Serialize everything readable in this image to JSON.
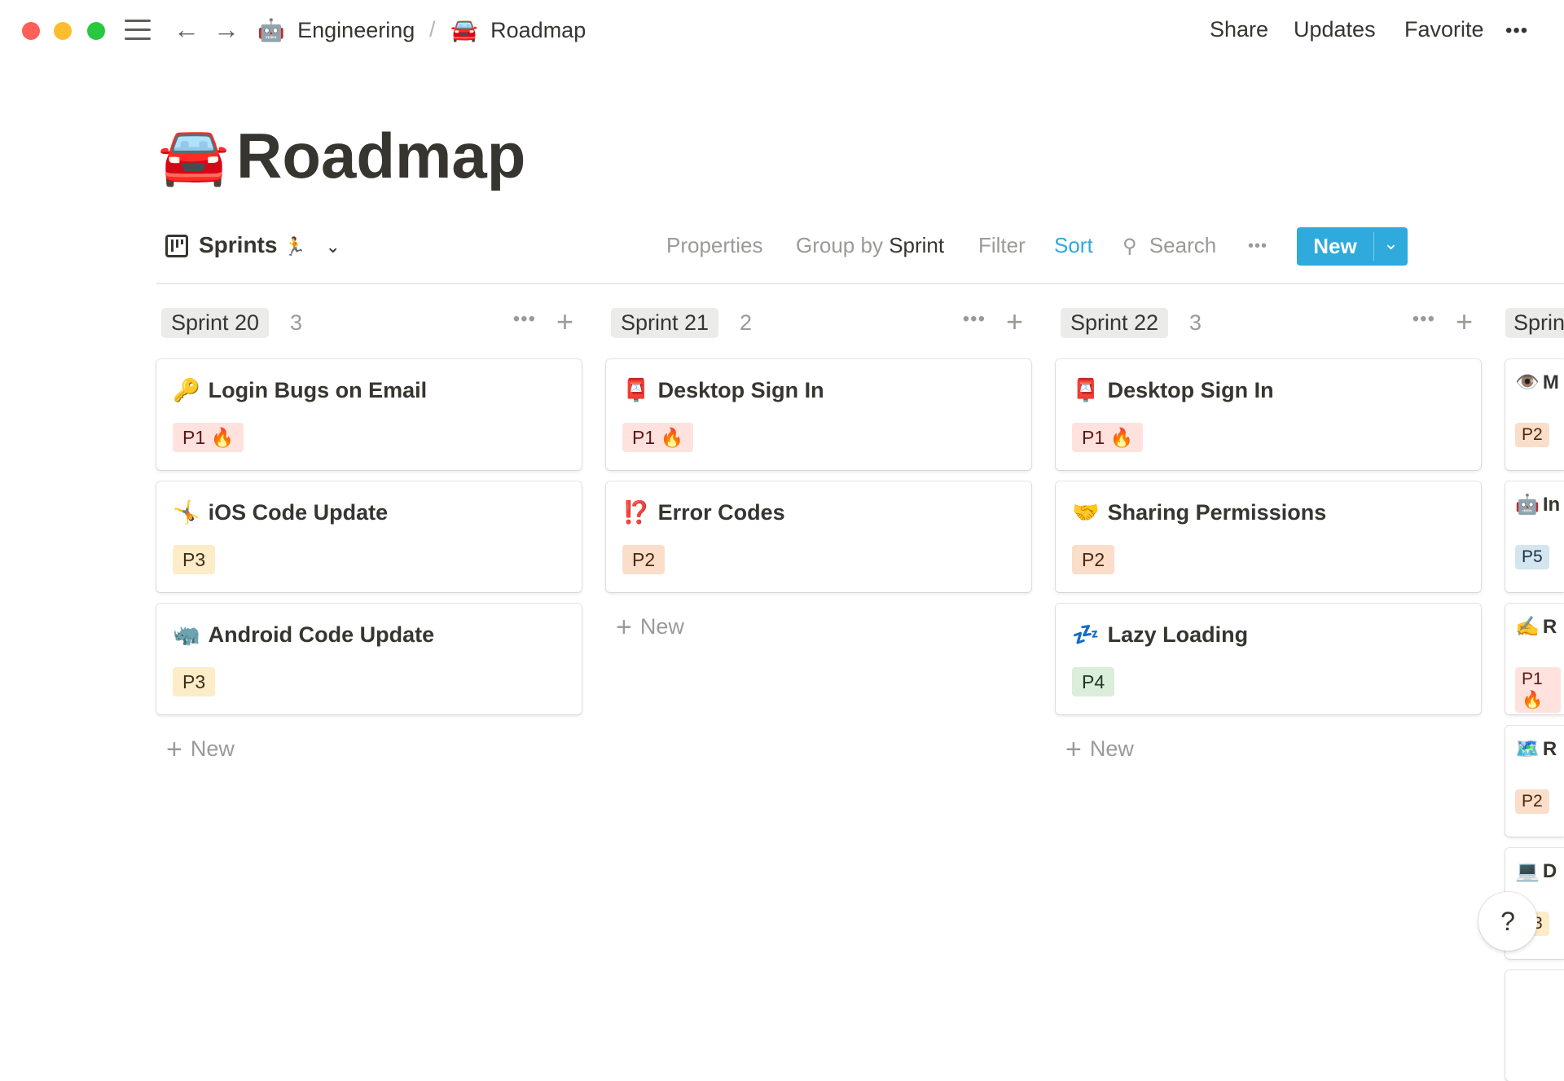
{
  "window": {
    "traffic_lights": [
      "#ff5f57",
      "#febc2e",
      "#28c840"
    ]
  },
  "topbar": {
    "breadcrumb": [
      {
        "icon": "🤖",
        "label": "Engineering"
      },
      {
        "icon": "🚘",
        "label": "Roadmap"
      }
    ],
    "separator": "/",
    "share": "Share",
    "updates": "Updates",
    "favorite": "Favorite",
    "more": "•••"
  },
  "page": {
    "icon": "🚘",
    "title": "Roadmap"
  },
  "toolbar": {
    "view_name": "Sprints",
    "view_emoji": "🏃",
    "properties": "Properties",
    "group_by_prefix": "Group by",
    "group_by_value": "Sprint",
    "filter": "Filter",
    "sort": "Sort",
    "search": "Search",
    "more": "•••",
    "new": "New",
    "accent": "#2eaadc"
  },
  "priority_colors": {
    "P1": {
      "bg": "#ffe2dd",
      "fg": "#5d1715"
    },
    "P2": {
      "bg": "#fadec9",
      "fg": "#49290e"
    },
    "P3": {
      "bg": "#fdecc8",
      "fg": "#402c1b"
    },
    "P4": {
      "bg": "#dbeddb",
      "fg": "#1c3829"
    },
    "P5": {
      "bg": "#d3e5ef",
      "fg": "#183347"
    }
  },
  "columns": [
    {
      "name": "Sprint 20",
      "count": "3",
      "new_label": "New",
      "cards": [
        {
          "icon": "🔑",
          "title": "Login Bugs on Email",
          "priority": "P1",
          "tag": "P1 🔥"
        },
        {
          "icon": "🤸",
          "title": "iOS Code Update",
          "priority": "P3",
          "tag": "P3"
        },
        {
          "icon": "🦏",
          "title": "Android Code Update",
          "priority": "P3",
          "tag": "P3"
        }
      ]
    },
    {
      "name": "Sprint 21",
      "count": "2",
      "new_label": "New",
      "cards": [
        {
          "icon": "📮",
          "title": "Desktop Sign In",
          "priority": "P1",
          "tag": "P1 🔥"
        },
        {
          "icon": "⁉️",
          "title": "Error Codes",
          "priority": "P2",
          "tag": "P2"
        }
      ]
    },
    {
      "name": "Sprint 22",
      "count": "3",
      "new_label": "New",
      "cards": [
        {
          "icon": "📮",
          "title": "Desktop Sign In",
          "priority": "P1",
          "tag": "P1 🔥"
        },
        {
          "icon": "🤝",
          "title": "Sharing Permissions",
          "priority": "P2",
          "tag": "P2"
        },
        {
          "icon": "💤",
          "title": "Lazy Loading",
          "priority": "P4",
          "tag": "P4"
        }
      ]
    },
    {
      "name": "Sprin",
      "count": "",
      "new_label": "",
      "cards": [
        {
          "icon": "👁️",
          "title": "M",
          "priority": "P2",
          "tag": "P2"
        },
        {
          "icon": "🤖",
          "title": "In",
          "priority": "P5",
          "tag": "P5"
        },
        {
          "icon": "✍️",
          "title": "R",
          "priority": "P1",
          "tag": "P1 🔥"
        },
        {
          "icon": "🗺️",
          "title": "R",
          "priority": "P2",
          "tag": "P2"
        },
        {
          "icon": "💻",
          "title": "D",
          "priority": "P3",
          "tag": "P3"
        },
        {
          "icon": "",
          "title": "",
          "priority": "",
          "tag": ""
        }
      ]
    }
  ],
  "help": "?"
}
